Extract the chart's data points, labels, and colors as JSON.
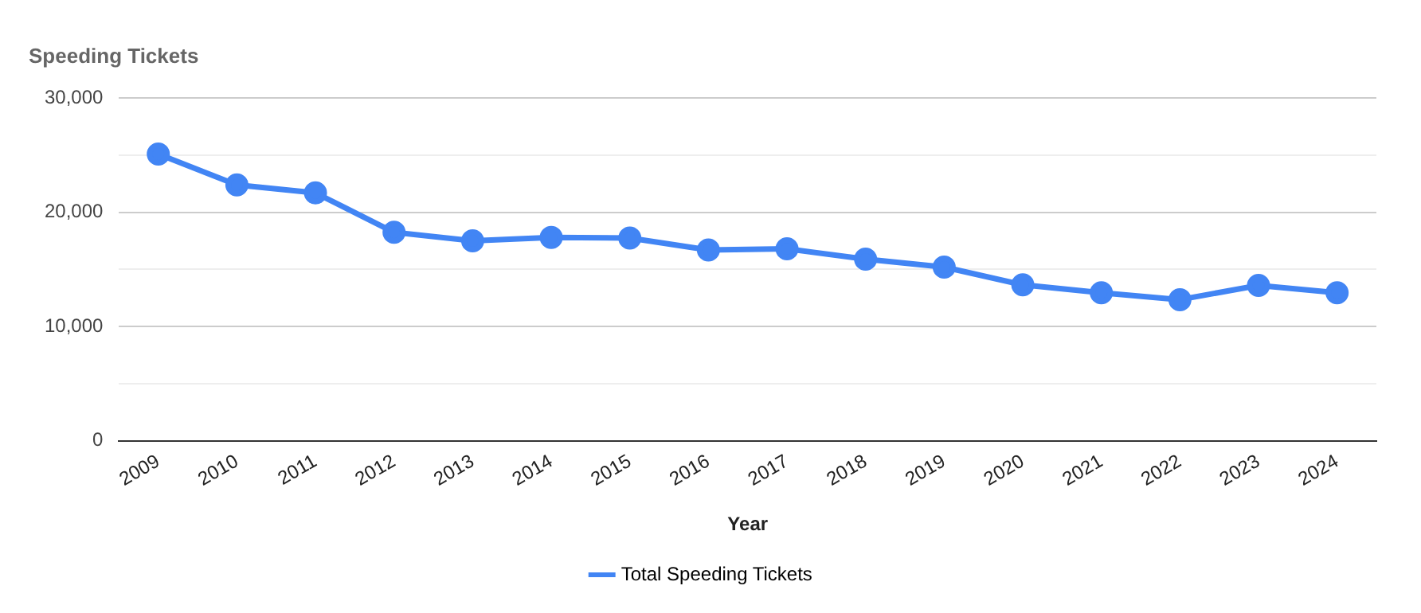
{
  "chart_data": {
    "type": "line",
    "title": "Speeding Tickets",
    "xlabel": "Year",
    "categories": [
      "2009",
      "2010",
      "2011",
      "2012",
      "2013",
      "2014",
      "2015",
      "2016",
      "2017",
      "2018",
      "2019",
      "2020",
      "2021",
      "2022",
      "2023",
      "2024"
    ],
    "series": [
      {
        "name": "Total Speeding Tickets",
        "color": "#4285f4",
        "values": [
          25100,
          22400,
          21700,
          18250,
          17500,
          17800,
          17750,
          16700,
          16800,
          15900,
          15200,
          13650,
          12950,
          12350,
          13600,
          12950
        ]
      }
    ],
    "ylim": [
      0,
      30000
    ],
    "yticks": [
      {
        "value": 0,
        "label": "0"
      },
      {
        "value": 5000,
        "label": null
      },
      {
        "value": 10000,
        "label": "10,000"
      },
      {
        "value": 15000,
        "label": null
      },
      {
        "value": 20000,
        "label": "20,000"
      },
      {
        "value": 25000,
        "label": null
      },
      {
        "value": 30000,
        "label": "30,000"
      }
    ],
    "grid": "y",
    "legend": "bottom",
    "marker": "circle",
    "line_style": "solid"
  }
}
